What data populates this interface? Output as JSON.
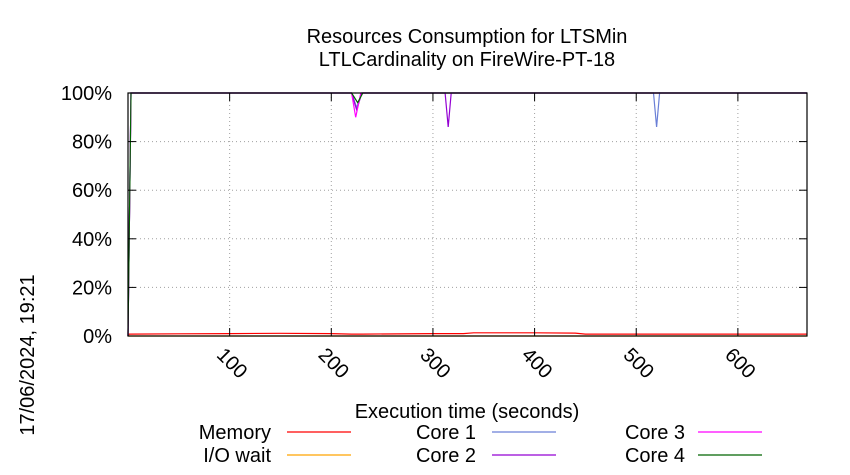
{
  "chart_data": {
    "type": "line",
    "title_line1": "Resources Consumption for LTSMin",
    "title_line2": "LTLCardinality on FireWire-PT-18",
    "xlabel": "Execution time (seconds)",
    "ylabel": "",
    "side_label": "17/06/2024, 19:21",
    "xlim": [
      0,
      668
    ],
    "ylim": [
      0,
      100
    ],
    "x_ticks": [
      100,
      200,
      300,
      400,
      500,
      600
    ],
    "y_ticks": [
      0,
      20,
      40,
      60,
      80,
      100
    ],
    "y_tick_labels": [
      "0%",
      "20%",
      "40%",
      "60%",
      "80%",
      "100%"
    ],
    "grid": true,
    "legend_position": "bottom",
    "series": [
      {
        "name": "Memory",
        "color": "#ff0000",
        "points": [
          [
            0,
            0
          ],
          [
            1,
            0.8
          ],
          [
            50,
            0.9
          ],
          [
            100,
            1.0
          ],
          [
            150,
            1.1
          ],
          [
            200,
            1.0
          ],
          [
            220,
            0.8
          ],
          [
            230,
            0.8
          ],
          [
            300,
            1.0
          ],
          [
            330,
            1.0
          ],
          [
            340,
            1.3
          ],
          [
            400,
            1.3
          ],
          [
            440,
            1.2
          ],
          [
            450,
            0.8
          ],
          [
            500,
            0.8
          ],
          [
            600,
            0.8
          ],
          [
            668,
            0.8
          ]
        ]
      },
      {
        "name": "I/O wait",
        "color": "#ffa500",
        "points": [
          [
            0,
            0
          ],
          [
            668,
            0
          ]
        ]
      },
      {
        "name": "Core 1",
        "color": "#6a7fd6",
        "points": [
          [
            0,
            0
          ],
          [
            3,
            100
          ],
          [
            220,
            100
          ],
          [
            225,
            94
          ],
          [
            230,
            100
          ],
          [
            315,
            100
          ],
          [
            318,
            100
          ],
          [
            321,
            100
          ],
          [
            517,
            100
          ],
          [
            520,
            86
          ],
          [
            523,
            100
          ],
          [
            668,
            100
          ]
        ]
      },
      {
        "name": "Core 2",
        "color": "#9400d3",
        "points": [
          [
            0,
            0
          ],
          [
            3,
            100
          ],
          [
            220,
            100
          ],
          [
            225,
            93
          ],
          [
            230,
            100
          ],
          [
            312,
            100
          ],
          [
            315,
            86
          ],
          [
            318,
            100
          ],
          [
            668,
            100
          ]
        ]
      },
      {
        "name": "Core 3",
        "color": "#ff00ff",
        "points": [
          [
            0,
            0
          ],
          [
            3,
            100
          ],
          [
            220,
            100
          ],
          [
            224,
            90
          ],
          [
            229,
            100
          ],
          [
            668,
            100
          ]
        ]
      },
      {
        "name": "Core 4",
        "color": "#006400",
        "points": [
          [
            0,
            0
          ],
          [
            3,
            100
          ],
          [
            220,
            100
          ],
          [
            226,
            96
          ],
          [
            231,
            100
          ],
          [
            668,
            100
          ]
        ]
      }
    ]
  }
}
